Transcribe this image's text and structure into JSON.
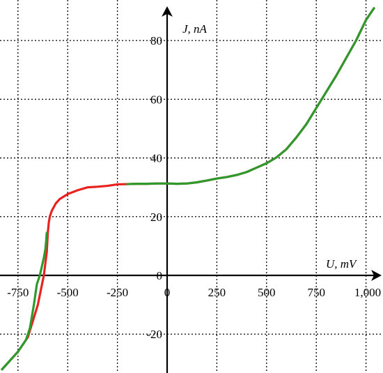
{
  "chart_data": {
    "type": "line",
    "title": "",
    "xlabel": "U, mV",
    "ylabel": "J, nA",
    "xlim": [
      -830,
      1055
    ],
    "ylim": [
      -32,
      90
    ],
    "grid": true,
    "x_ticks": [
      -750,
      -500,
      -250,
      0,
      250,
      500,
      750,
      1000
    ],
    "x_tick_labels": [
      "-750",
      "-500",
      "-250",
      "0",
      "250",
      "500",
      "750",
      "1,000"
    ],
    "y_ticks": [
      -20,
      0,
      20,
      40,
      60,
      80
    ],
    "y_tick_labels": [
      "-20",
      "0",
      "20",
      "40",
      "60",
      "80"
    ],
    "colors": {
      "red_series": "#e8231f",
      "green_series": "#2e9a2e",
      "grid": "#000000",
      "axes": "#000000"
    },
    "series": [
      {
        "color": "#e8231f",
        "x": [
          -830,
          -790,
          -750,
          -700,
          -650,
          -620,
          -605,
          -600,
          -595,
          -590,
          -580,
          -560,
          -540,
          -500,
          -450,
          -400,
          -350,
          -300,
          -250,
          -200,
          -150,
          -100,
          -50,
          0,
          50,
          100,
          150,
          200,
          250,
          300,
          350,
          400,
          450,
          500,
          550,
          600,
          650,
          700,
          750,
          800,
          850,
          900,
          950,
          1000,
          1040
        ],
        "y": [
          -32,
          -29,
          -26,
          -21,
          -10,
          0,
          8,
          14.5,
          18,
          20,
          22,
          24.5,
          26,
          27.7,
          29,
          30,
          30.2,
          30.5,
          31,
          31.1,
          31.2,
          31.2,
          31.3,
          31.3,
          31.2,
          31.3,
          31.7,
          32.3,
          33,
          33.5,
          34.2,
          35.2,
          36.7,
          38.2,
          40.2,
          43,
          47,
          51.5,
          57,
          62.5,
          68,
          74,
          80,
          87,
          91
        ]
      },
      {
        "color": "#2e9a2e",
        "x": [
          -830,
          -790,
          -750,
          -710,
          -690,
          -670,
          -655,
          -640,
          -630,
          -620,
          -612,
          -608,
          -606,
          -605
        ],
        "y": [
          -32,
          -29,
          -26,
          -22,
          -18,
          -10,
          -3,
          0,
          3,
          6,
          9,
          12,
          14,
          14.5
        ]
      },
      {
        "color": "#2e9a2e",
        "x": [
          -200,
          -150,
          -100,
          -50,
          0,
          50,
          100,
          150,
          200,
          250,
          300,
          350,
          400,
          450,
          500,
          550,
          600,
          650,
          700,
          750,
          800,
          850,
          900,
          950,
          1000,
          1040
        ],
        "y": [
          31.1,
          31.2,
          31.2,
          31.3,
          31.3,
          31.2,
          31.3,
          31.7,
          32.3,
          33,
          33.5,
          34.2,
          35.2,
          36.7,
          38.2,
          40.2,
          43,
          47,
          51.5,
          57,
          62.5,
          68,
          74,
          80,
          87,
          91
        ]
      }
    ]
  }
}
